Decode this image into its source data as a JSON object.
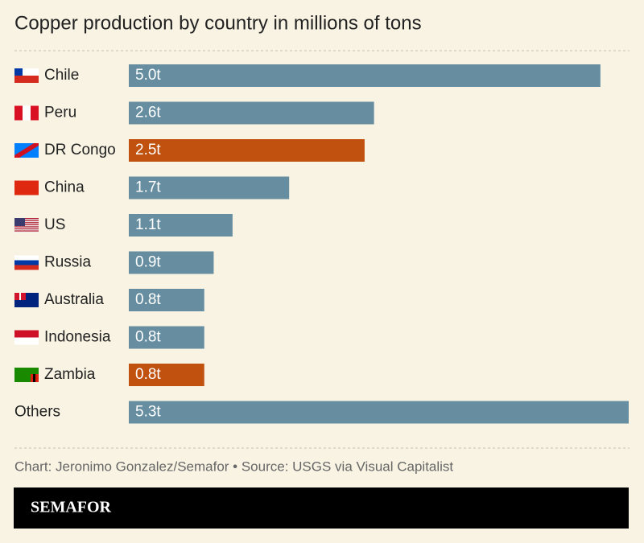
{
  "chart_data": {
    "type": "hbar",
    "title": "Copper production by country in millions of tons",
    "categories": [
      "Chile",
      "Peru",
      "DR Congo",
      "China",
      "US",
      "Russia",
      "Australia",
      "Indonesia",
      "Zambia",
      "Others"
    ],
    "values": [
      5.0,
      2.6,
      2.5,
      1.7,
      1.1,
      0.9,
      0.8,
      0.8,
      0.8,
      5.3
    ],
    "value_labels": [
      "5.0t",
      "2.6t",
      "2.5t",
      "1.7t",
      "1.1t",
      "0.9t",
      "0.8t",
      "0.8t",
      "0.8t",
      "5.3t"
    ],
    "colors": [
      "#668ea0",
      "#668ea0",
      "#c0510f",
      "#668ea0",
      "#668ea0",
      "#668ea0",
      "#668ea0",
      "#668ea0",
      "#c0510f",
      "#668ea0"
    ],
    "source": "Chart: Jeronimo Gonzalez/Semafor • Source: USGS via Visual Capitalist",
    "brand": "SEMAFOR"
  }
}
